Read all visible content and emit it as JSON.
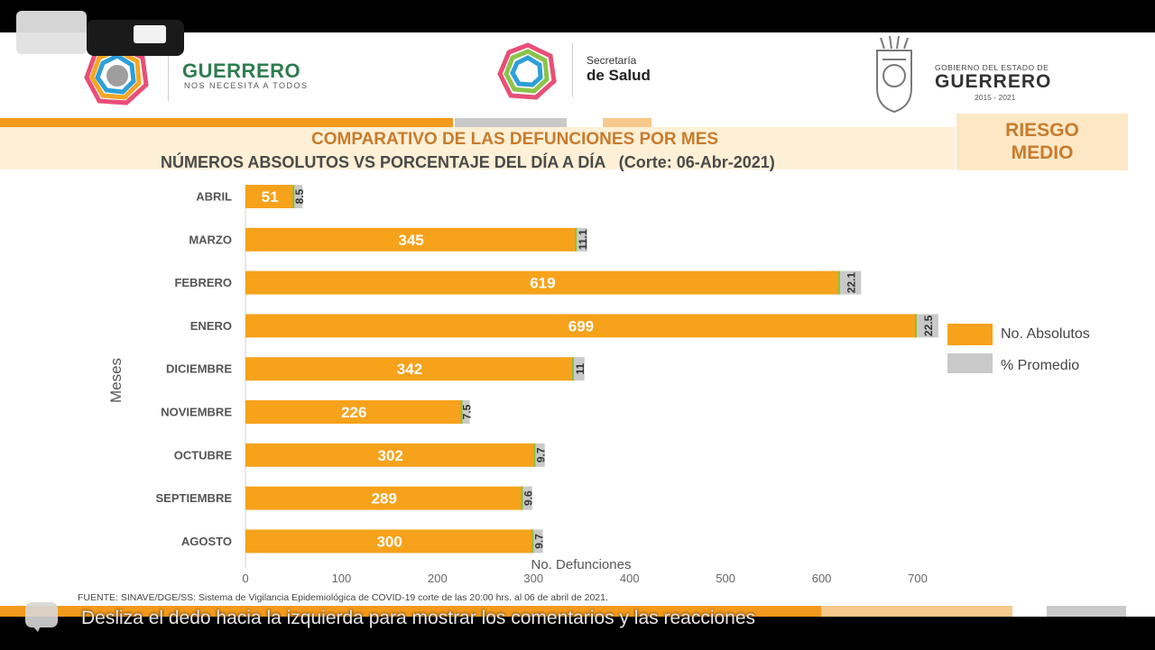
{
  "header": {
    "brand_name": "GUERRERO",
    "brand_tagline": "NOS NECESITA A TODOS",
    "health_line1": "Secretaría",
    "health_line2": "de Salud",
    "gov_line1": "GOBIERNO DEL ESTADO DE",
    "gov_line2": "GUERRERO",
    "gov_years": "2015 - 2021"
  },
  "risk_badge": {
    "line1": "RIESGO",
    "line2": "MEDIO"
  },
  "colors": {
    "absolute": "#f7a21b",
    "percent": "#c9c9c9",
    "accent": "#c97b2c"
  },
  "chart_data": {
    "type": "bar",
    "orientation": "horizontal",
    "stacked": true,
    "title": "COMPARATIVO DE LAS DEFUNCIONES POR MES",
    "subtitle": "NÚMEROS ABSOLUTOS VS PORCENTAJE DEL DÍA A DÍA   (Corte: 06-Abr-2021)",
    "xlabel": "No. Defunciones",
    "ylabel": "Meses",
    "xlim": [
      0,
      700
    ],
    "xticks": [
      "0",
      "100",
      "200",
      "300",
      "400",
      "500",
      "600",
      "700"
    ],
    "categories": [
      "ABRIL",
      "MARZO",
      "FEBRERO",
      "ENERO",
      "DICIEMBRE",
      "NOVIEMBRE",
      "OCTUBRE",
      "SEPTIEMBRE",
      "AGOSTO"
    ],
    "series": [
      {
        "name": "No. Absolutos",
        "values": [
          51,
          345,
          619,
          699,
          342,
          226,
          302,
          289,
          300
        ]
      },
      {
        "name": "% Promedio",
        "values": [
          8.5,
          11.1,
          22.1,
          22.5,
          11,
          7.5,
          9.7,
          9.6,
          9.7
        ]
      }
    ],
    "percent_labels": [
      "8.5",
      "11.1",
      "22.1",
      "22.5",
      "11",
      "7.5",
      "9.7",
      "9.6",
      "9.7"
    ],
    "legend_position": "right"
  },
  "source_note": "FUENTE: SINAVE/DGE/SS: Sistema de Vigilancia Epidemiológica de COVID-19 corte de las 20:00 hrs. al 06 de  abril de 2021.",
  "overlay": {
    "swipe_hint": "Desliza el dedo hacia la izquierda para mostrar los comentarios y las reacciones"
  }
}
